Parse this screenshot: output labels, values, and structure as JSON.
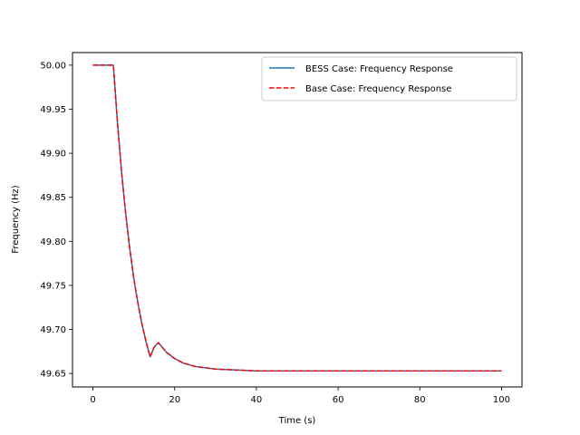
{
  "chart_data": {
    "type": "line",
    "title": "",
    "xlabel": "Time (s)",
    "ylabel": "Frequency (Hz)",
    "xlim": [
      -5,
      105
    ],
    "ylim": [
      49.6347,
      50.0143
    ],
    "xticks": [
      0,
      20,
      40,
      60,
      80,
      100
    ],
    "xtick_labels": [
      "0",
      "20",
      "40",
      "60",
      "80",
      "100"
    ],
    "yticks": [
      49.65,
      49.7,
      49.75,
      49.8,
      49.85,
      49.9,
      49.95,
      50.0
    ],
    "ytick_labels": [
      "49.65",
      "49.70",
      "49.75",
      "49.80",
      "49.85",
      "49.90",
      "49.95",
      "50.00"
    ],
    "grid": false,
    "legend_position": "top-right",
    "series": [
      {
        "name": "BESS Case: Frequency Response",
        "color": "#1f77b4",
        "style": "solid",
        "x": [
          0,
          5,
          6,
          7,
          8,
          9,
          10,
          11,
          12,
          13,
          14,
          15,
          16,
          18,
          20,
          22,
          25,
          30,
          35,
          40,
          50,
          60,
          70,
          80,
          90,
          100
        ],
        "y": [
          50.0,
          50.0,
          49.935,
          49.879,
          49.832,
          49.792,
          49.758,
          49.73,
          49.706,
          49.686,
          49.669,
          49.68,
          49.685,
          49.674,
          49.667,
          49.662,
          49.658,
          49.655,
          49.654,
          49.653,
          49.653,
          49.653,
          49.653,
          49.653,
          49.653,
          49.653
        ]
      },
      {
        "name": "Base Case: Frequency Response",
        "color": "#ff0000",
        "style": "dashed",
        "x": [
          0,
          5,
          6,
          7,
          8,
          9,
          10,
          11,
          12,
          13,
          14,
          15,
          16,
          18,
          20,
          22,
          25,
          30,
          35,
          40,
          50,
          60,
          70,
          80,
          90,
          100
        ],
        "y": [
          50.0,
          50.0,
          49.935,
          49.879,
          49.832,
          49.792,
          49.758,
          49.73,
          49.706,
          49.686,
          49.669,
          49.68,
          49.685,
          49.674,
          49.667,
          49.662,
          49.658,
          49.655,
          49.654,
          49.653,
          49.653,
          49.653,
          49.653,
          49.653,
          49.653,
          49.653
        ]
      }
    ]
  }
}
